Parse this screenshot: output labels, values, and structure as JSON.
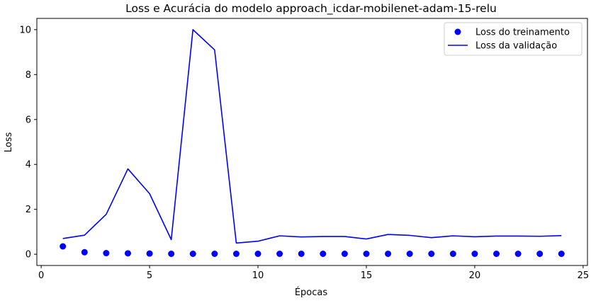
{
  "chart_data": {
    "type": "line",
    "title": "Loss e Acurácia do modelo approach_icdar-mobilenet-adam-15-relu",
    "xlabel": "Épocas",
    "ylabel": "Loss",
    "xlim": [
      -0.2,
      25.2
    ],
    "ylim": [
      -0.5,
      10.5
    ],
    "xticks": [
      0,
      5,
      10,
      15,
      20,
      25
    ],
    "yticks": [
      0,
      2,
      4,
      6,
      8,
      10
    ],
    "grid": false,
    "legend_position": "top-right",
    "x": [
      1,
      2,
      3,
      4,
      5,
      6,
      7,
      8,
      9,
      10,
      11,
      12,
      13,
      14,
      15,
      16,
      17,
      18,
      19,
      20,
      21,
      22,
      23,
      24
    ],
    "series": [
      {
        "name": "Loss do treinamento",
        "style": "markers",
        "color": "#0000ff",
        "values": [
          0.35,
          0.09,
          0.05,
          0.04,
          0.03,
          0.02,
          0.02,
          0.02,
          0.02,
          0.02,
          0.02,
          0.02,
          0.02,
          0.02,
          0.02,
          0.02,
          0.02,
          0.02,
          0.02,
          0.02,
          0.02,
          0.02,
          0.02,
          0.02
        ]
      },
      {
        "name": "Loss da validação",
        "style": "line",
        "color": "#0000ff",
        "values": [
          0.7,
          0.85,
          1.78,
          3.8,
          2.7,
          0.65,
          10.0,
          9.1,
          0.5,
          0.58,
          0.82,
          0.77,
          0.79,
          0.79,
          0.68,
          0.88,
          0.84,
          0.74,
          0.82,
          0.78,
          0.81,
          0.81,
          0.8,
          0.83
        ]
      }
    ]
  }
}
